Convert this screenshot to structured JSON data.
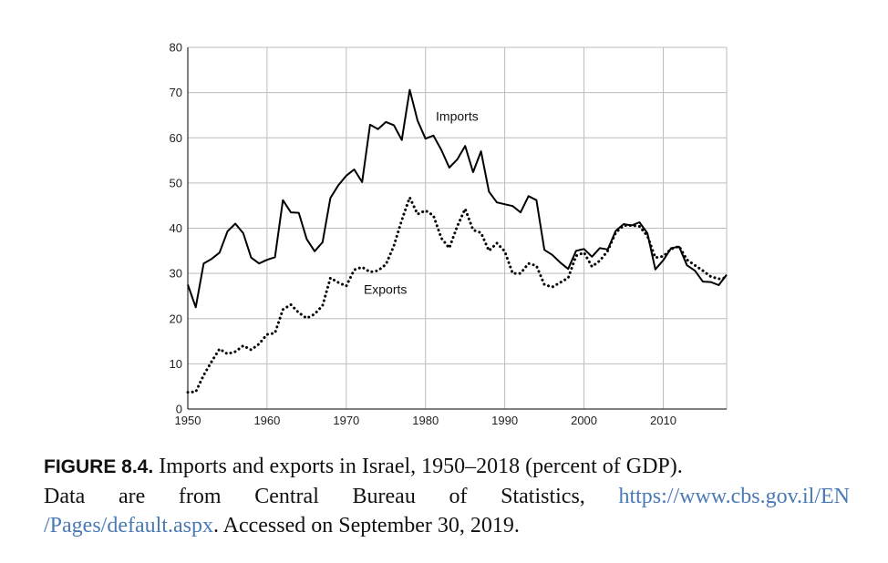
{
  "chart_data": {
    "type": "line",
    "title": "",
    "xlabel": "",
    "ylabel": "",
    "xlim": [
      1950,
      2018
    ],
    "ylim": [
      0,
      80
    ],
    "x_ticks": [
      1950,
      1960,
      1970,
      1980,
      1990,
      2000,
      2010
    ],
    "y_ticks": [
      0,
      10,
      20,
      30,
      40,
      50,
      60,
      70,
      80
    ],
    "grid": true,
    "series": [
      {
        "name": "Imports",
        "style": "solid",
        "x": [
          1950,
          1951,
          1952,
          1953,
          1954,
          1955,
          1956,
          1957,
          1958,
          1959,
          1960,
          1961,
          1962,
          1963,
          1964,
          1965,
          1966,
          1967,
          1968,
          1969,
          1970,
          1971,
          1972,
          1973,
          1974,
          1975,
          1976,
          1977,
          1978,
          1979,
          1980,
          1981,
          1982,
          1983,
          1984,
          1985,
          1986,
          1987,
          1988,
          1989,
          1990,
          1991,
          1992,
          1993,
          1994,
          1995,
          1996,
          1997,
          1998,
          1999,
          2000,
          2001,
          2002,
          2003,
          2004,
          2005,
          2006,
          2007,
          2008,
          2009,
          2010,
          2011,
          2012,
          2013,
          2014,
          2015,
          2016,
          2017,
          2018
        ],
        "values": [
          27.5,
          22.5,
          32.2,
          33.2,
          34.6,
          39.3,
          41.0,
          38.9,
          33.5,
          32.2,
          33.0,
          33.6,
          46.2,
          43.5,
          43.4,
          37.6,
          34.9,
          36.9,
          46.7,
          49.5,
          51.6,
          53.0,
          50.2,
          62.9,
          61.9,
          63.5,
          62.8,
          59.5,
          70.6,
          63.8,
          59.8,
          60.5,
          57.3,
          53.4,
          55.2,
          58.2,
          52.4,
          57.0,
          48.1,
          45.7,
          45.3,
          44.9,
          43.5,
          47.1,
          46.2,
          35.2,
          34.1,
          32.4,
          31.0,
          35.0,
          35.4,
          33.7,
          35.6,
          35.3,
          39.4,
          40.9,
          40.6,
          41.3,
          38.9,
          30.9,
          32.9,
          35.6,
          35.9,
          31.8,
          30.6,
          28.2,
          28.1,
          27.4,
          29.7
        ]
      },
      {
        "name": "Exports",
        "style": "dotted",
        "x": [
          1950,
          1951,
          1952,
          1953,
          1954,
          1955,
          1956,
          1957,
          1958,
          1959,
          1960,
          1961,
          1962,
          1963,
          1964,
          1965,
          1966,
          1967,
          1968,
          1969,
          1970,
          1971,
          1972,
          1973,
          1974,
          1975,
          1976,
          1977,
          1978,
          1979,
          1980,
          1981,
          1982,
          1983,
          1984,
          1985,
          1986,
          1987,
          1988,
          1989,
          1990,
          1991,
          1992,
          1993,
          1994,
          1995,
          1996,
          1997,
          1998,
          1999,
          2000,
          2001,
          2002,
          2003,
          2004,
          2005,
          2006,
          2007,
          2008,
          2009,
          2010,
          2011,
          2012,
          2013,
          2014,
          2015,
          2016,
          2017,
          2018
        ],
        "values": [
          3.7,
          3.8,
          7.5,
          10.5,
          13.3,
          12.2,
          12.7,
          14.0,
          13.1,
          14.4,
          16.5,
          16.8,
          22.0,
          23.1,
          21.3,
          20.1,
          21.0,
          22.9,
          29.0,
          28.0,
          27.2,
          30.8,
          31.4,
          30.3,
          30.6,
          32.0,
          36.1,
          41.8,
          46.8,
          43.1,
          43.9,
          42.8,
          37.8,
          35.6,
          40.4,
          44.3,
          39.6,
          39.0,
          35.0,
          36.7,
          34.9,
          30.0,
          30.0,
          32.2,
          31.7,
          27.5,
          27.0,
          28.0,
          29.0,
          33.9,
          34.6,
          31.5,
          32.8,
          35.0,
          39.0,
          40.6,
          40.6,
          40.4,
          38.3,
          33.5,
          33.8,
          35.4,
          36.0,
          33.0,
          31.8,
          30.6,
          29.3,
          28.8,
          29.1
        ]
      }
    ],
    "annotations": [
      {
        "text": "Imports",
        "at_year": 1981.3,
        "at_value": 63.8
      },
      {
        "text": "Exports",
        "at_year": 1972.2,
        "at_value": 25.5
      }
    ]
  },
  "caption": {
    "figure_label": "FIGURE 8.4.",
    "line1_text": " Imports and exports in Israel, 1950–2018 (percent of GDP).",
    "line2_text": "Data are from Central Bureau of Statistics,",
    "url_part1": "https://www.cbs.gov.il/EN",
    "url_part2": "/Pages/default.aspx",
    "line3_text": ". Accessed on September 30, 2019."
  },
  "colors": {
    "line": "#000000",
    "grid": "#bdbdbd",
    "axis": "#000000",
    "link": "#4a7ab5"
  }
}
